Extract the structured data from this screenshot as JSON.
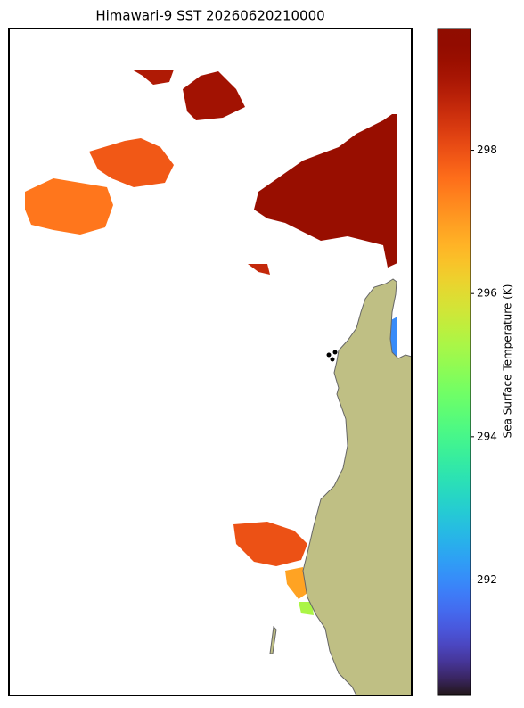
{
  "chart_data": {
    "type": "sst-map",
    "title": "Himawari-9 SST 20260620210000",
    "colorbar_label": "Sea Surface Temperature (K)",
    "colormap": "turbo",
    "clim": [
      290.4,
      299.7
    ],
    "cticks": [
      292,
      294,
      296,
      298
    ],
    "patch_values": [
      299.3,
      299.1,
      298.9,
      297.9,
      297.5,
      298.0,
      298.6,
      296.9,
      295.3,
      292.0
    ]
  }
}
